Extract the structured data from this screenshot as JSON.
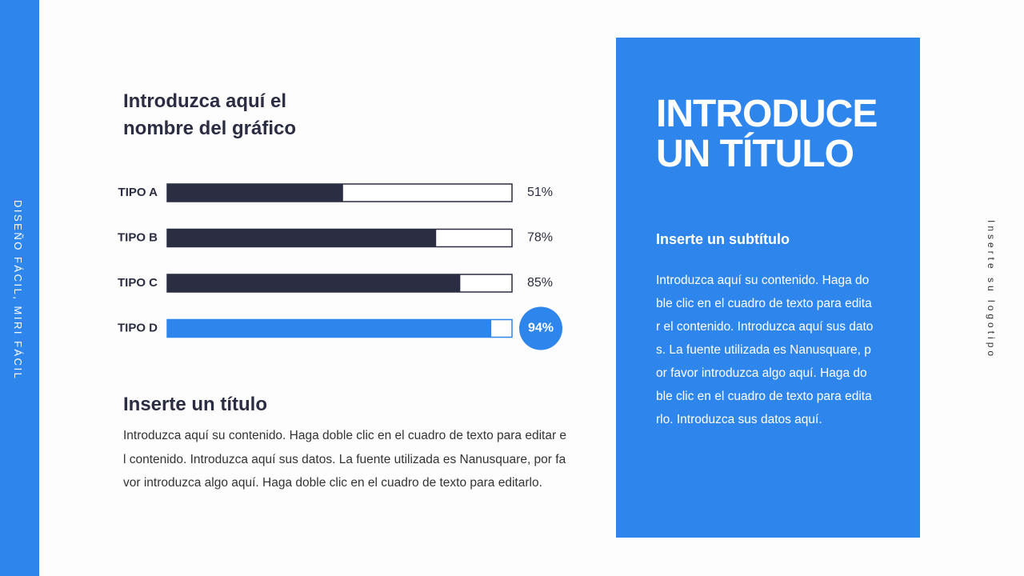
{
  "side_label": "DISEÑO FÁCIL, MIRI FÁCIL",
  "logo_label": "Inserte su logotipo",
  "chart_data": {
    "type": "bar",
    "title": "Introduzca aquí el nombre del gráfico",
    "categories": [
      "TIPO A",
      "TIPO B",
      "TIPO C",
      "TIPO D"
    ],
    "values": [
      51,
      78,
      85,
      94
    ],
    "value_labels": [
      "51%",
      "78%",
      "85%",
      "94%"
    ],
    "colors": [
      "#2b2d42",
      "#2b2d42",
      "#2b2d42",
      "#2e86ed"
    ],
    "xlim": [
      0,
      100
    ]
  },
  "body": {
    "title": "Inserte un título",
    "text": "Introduzca aquí su contenido. Haga doble clic en el cuadro de texto para editar el contenido. Introduzca aquí sus datos. La fuente utilizada es Nanusquare, por favor introduzca algo aquí. Haga doble clic en el cuadro de texto para editarlo."
  },
  "panel": {
    "title_lines": [
      "INTRODUCE",
      "UN TÍTULO"
    ],
    "subtitle": "Inserte un subtítulo",
    "text": "Introduzca aquí su contenido. Haga doble clic en el cuadro de texto para editar el contenido. Introduzca aquí sus datos. La fuente utilizada es Nanusquare, por favor introduzca algo aquí. Haga doble clic en el cuadro de texto para editarlo. Introduzca sus datos aquí."
  }
}
